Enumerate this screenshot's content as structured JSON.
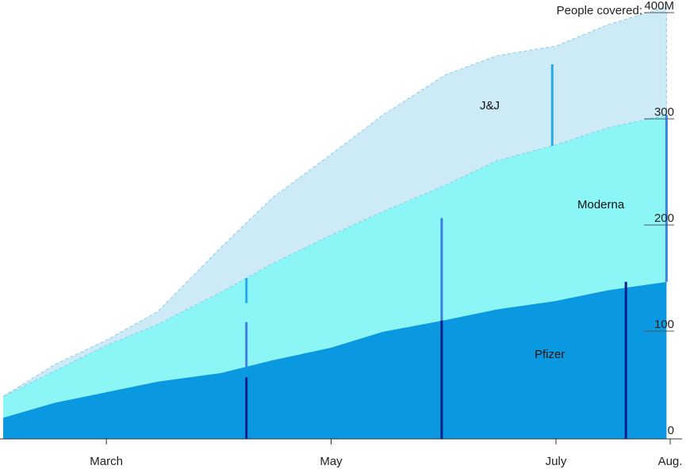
{
  "chart_data": {
    "type": "area",
    "stacked": true,
    "title": "",
    "y_axis_title": "People covered:",
    "y_axis_unit_suffix": "M",
    "x_tick_labels": [
      "March",
      "May",
      "July",
      "Aug."
    ],
    "y_ticks": [
      0,
      100,
      200,
      300,
      400
    ],
    "y_tick_labels": [
      "0",
      "100",
      "200",
      "300",
      "400M"
    ],
    "ylim": [
      0,
      400
    ],
    "y_axis_position": "right",
    "grid": false,
    "x": [
      "2021-02-01",
      "2021-02-15",
      "2021-03-01",
      "2021-03-15",
      "2021-04-01",
      "2021-04-15",
      "2021-05-01",
      "2021-05-15",
      "2021-06-01",
      "2021-06-15",
      "2021-07-01",
      "2021-07-15",
      "2021-07-31"
    ],
    "series": [
      {
        "name": "Pfizer",
        "color": "#0a98e0",
        "values": [
          20,
          34,
          44,
          54,
          62,
          74,
          86,
          101,
          112,
          122,
          130,
          140,
          148
        ]
      },
      {
        "name": "Moderna",
        "color": "#8cf5f5",
        "values": [
          20,
          30,
          44,
          54,
          76,
          91,
          106,
          113,
          127,
          140,
          147,
          153,
          157
        ]
      },
      {
        "name": "J&J",
        "color": "#cdeaf7",
        "values": [
          0,
          6,
          5,
          12,
          42,
          62,
          76,
          91,
          104,
          99,
          93,
          97,
          102
        ]
      }
    ],
    "milestones": [
      {
        "series": "Pfizer",
        "x": "2021-04-08",
        "value": 58
      },
      {
        "series": "Moderna",
        "x": "2021-04-08",
        "value": 110
      },
      {
        "series": "J&J",
        "x": "2021-04-08",
        "value": 128
      },
      {
        "series": "Pfizer",
        "x": "2021-05-31",
        "value": 112
      },
      {
        "series": "Moderna",
        "x": "2021-05-31",
        "value": 208
      },
      {
        "series": "J&J",
        "x": "2021-06-30",
        "value": 353
      },
      {
        "series": "Pfizer",
        "x": "2021-07-20",
        "value": 148
      },
      {
        "series": "Moderna",
        "x": "2021-07-31",
        "value": 305
      }
    ],
    "milestone_colors": {
      "Pfizer": "#0a1f8a",
      "Moderna": "#3f7fe0",
      "J&J": "#29a8e6"
    }
  }
}
